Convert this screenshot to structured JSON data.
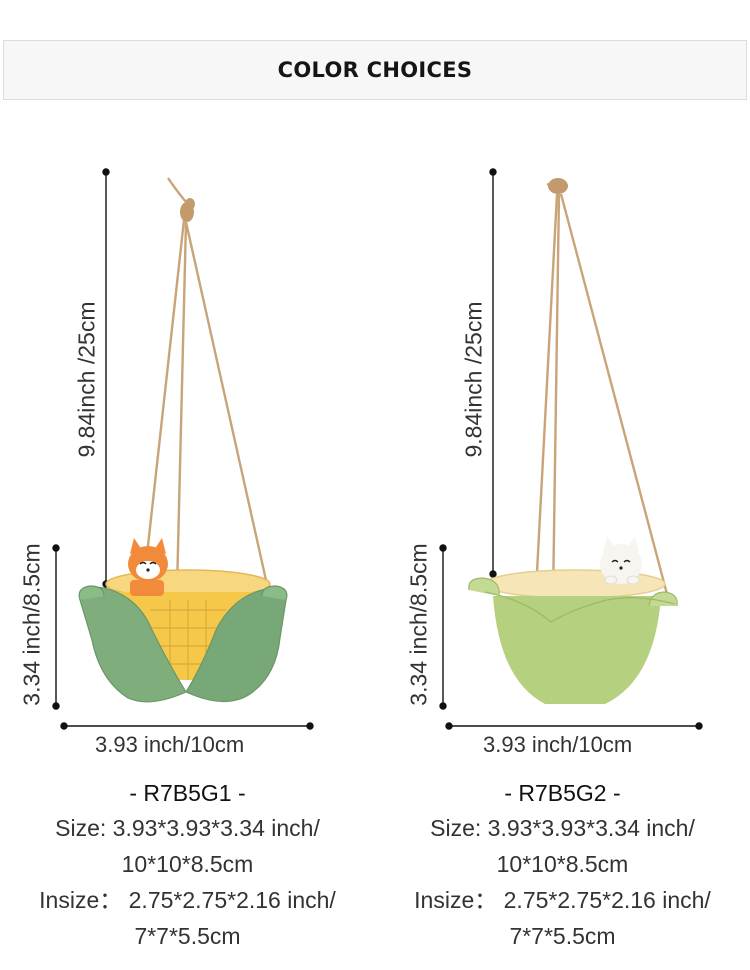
{
  "header": {
    "title": "COLOR CHOICES"
  },
  "products": [
    {
      "code": "- R7B5G1 -",
      "height_total": "9.84inch /25cm",
      "height_pot": "3.34 inch/8.5cm",
      "width": "3.93 inch/10cm",
      "size_line1": "Size: 3.93*3.93*3.34 inch/",
      "size_line2": "10*10*8.5cm",
      "insize_line1": "Insize：  2.75*2.75*2.16 inch/",
      "insize_line2": "7*7*5.5cm",
      "pot_color": "#7fae7c",
      "corn_color": "#f6c84a",
      "animal": "fox"
    },
    {
      "code": "- R7B5G2 -",
      "height_total": "9.84inch /25cm",
      "height_pot": "3.34 inch/8.5cm",
      "width": "3.93 inch/10cm",
      "size_line1": "Size: 3.93*3.93*3.34 inch/",
      "size_line2": "10*10*8.5cm",
      "insize_line1": "Insize：  2.75*2.75*2.16 inch/",
      "insize_line2": "7*7*5.5cm",
      "pot_color": "#b5d07f",
      "corn_color": "#f3dc9a",
      "animal": "cat"
    }
  ]
}
